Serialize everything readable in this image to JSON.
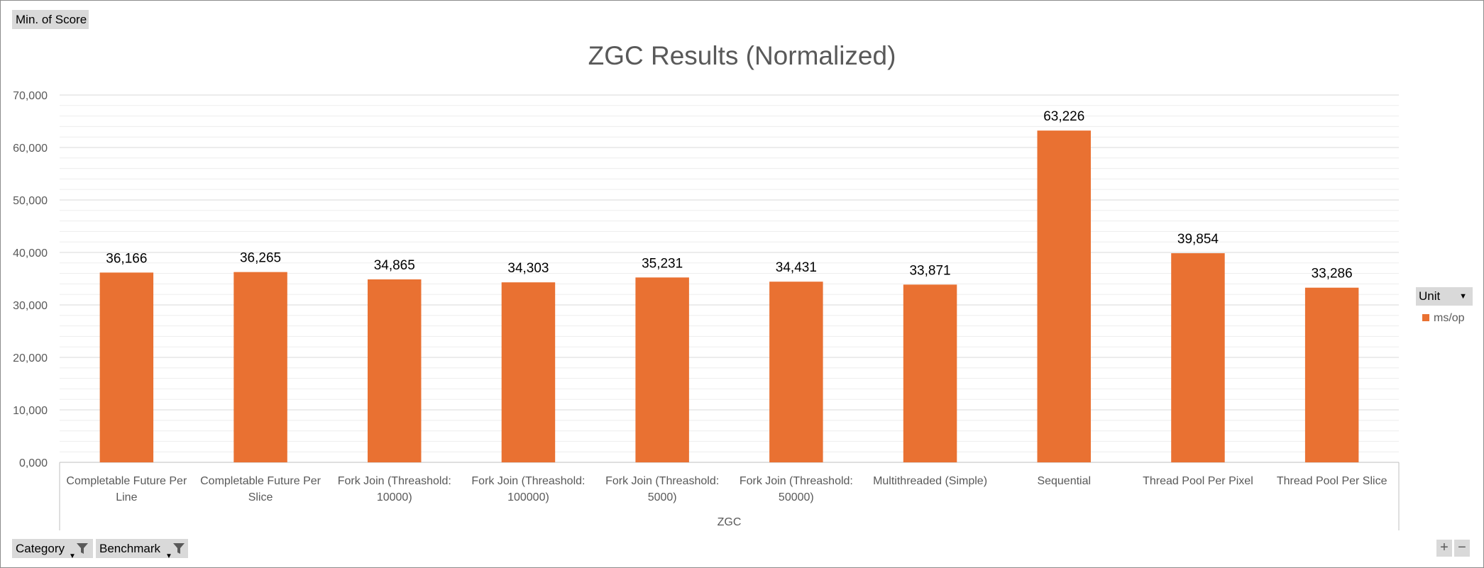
{
  "pivot": {
    "value_field": "Min. of Score",
    "category_field": "Category",
    "benchmark_field": "Benchmark",
    "legend_field": "Unit",
    "zoom_in": "+",
    "zoom_out": "−"
  },
  "colors": {
    "bar": "#e97132",
    "grid_major": "#d9d9d9",
    "grid_minor": "#ededed",
    "text": "#595959"
  },
  "chart_data": {
    "type": "bar",
    "title": "ZGC Results (Normalized)",
    "group_label": "ZGC",
    "categories": [
      [
        "Completable Future Per",
        "Line"
      ],
      [
        "Completable Future Per",
        "Slice"
      ],
      [
        "Fork Join (Threashold:",
        "10000)"
      ],
      [
        "Fork Join (Threashold:",
        "100000)"
      ],
      [
        "Fork Join (Threashold:",
        "5000)"
      ],
      [
        "Fork Join (Threashold:",
        "50000)"
      ],
      [
        "Multithreaded (Simple)"
      ],
      [
        "Sequential"
      ],
      [
        "Thread Pool Per Pixel"
      ],
      [
        "Thread Pool Per Slice"
      ]
    ],
    "series": [
      {
        "name": "ms/op",
        "values": [
          36166,
          36265,
          34865,
          34303,
          35231,
          34431,
          33871,
          63226,
          39854,
          33286
        ]
      }
    ],
    "data_labels": [
      "36,166",
      "36,265",
      "34,865",
      "34,303",
      "35,231",
      "34,431",
      "33,871",
      "63,226",
      "39,854",
      "33,286"
    ],
    "yticks": [
      "0,000",
      "10,000",
      "20,000",
      "30,000",
      "40,000",
      "50,000",
      "60,000",
      "70,000"
    ],
    "ylim": [
      0,
      70000
    ],
    "grid": true,
    "legend_position": "right"
  }
}
